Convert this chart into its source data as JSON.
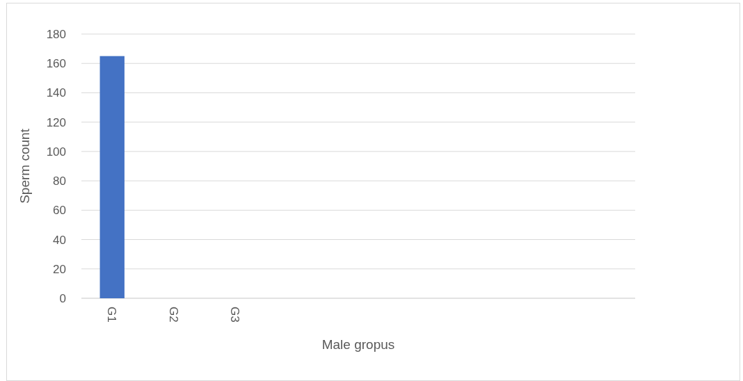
{
  "chart_data": {
    "type": "bar",
    "xlabel": "Male gropus",
    "ylabel": "Sperm count",
    "categories": [
      "G1",
      "G2",
      "G3",
      null,
      null,
      null,
      null,
      null,
      null
    ],
    "values": [
      165,
      0,
      0,
      null,
      null,
      null,
      null,
      null,
      null
    ],
    "color": "#4472c4",
    "ylim": [
      0,
      180
    ],
    "yticks": [
      0,
      20,
      40,
      60,
      80,
      100,
      120,
      140,
      160,
      180
    ],
    "grid": "y"
  }
}
